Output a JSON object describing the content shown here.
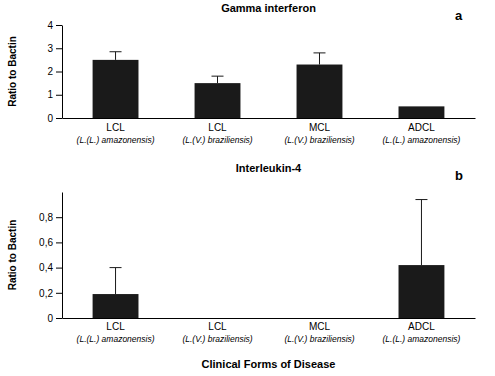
{
  "chart_data": [
    {
      "type": "bar",
      "title": "Gamma interferon",
      "annotation": "a",
      "y_label": "Ratio to Bactin",
      "categories": [
        "LCL\n(L.(L.) amazonensis)",
        "LCL\n(L.(V.) braziliensis)",
        "MCL\n(L.(V.) braziliensis)",
        "ADCL\n(L.(L.) amazonensis)"
      ],
      "values": [
        2.5,
        1.5,
        2.3,
        0.5
      ],
      "errors": [
        0.35,
        0.3,
        0.5,
        null
      ],
      "color": "#1a1a1a",
      "ylim": [
        0,
        4
      ],
      "yticks": [
        0,
        1,
        2,
        3,
        4
      ]
    },
    {
      "type": "bar",
      "title": "Interleukin-4",
      "annotation": "b",
      "y_label": "Ratio to Bactin",
      "x_label": "Clinical Forms of Disease",
      "categories": [
        "LCL\n(L.(L.) amazonensis)",
        "LCL\n(L.(V.) braziliensis)",
        "MCL\n(L.(V.) braziliensis)",
        "ADCL\n(L.(L.) amazonensis)"
      ],
      "values": [
        0.19,
        0,
        0,
        0.42
      ],
      "errors": [
        0.21,
        null,
        null,
        0.52
      ],
      "color": "#1a1a1a",
      "ylim": [
        0,
        1
      ],
      "yticks": [
        0,
        {
          "value": 0.2,
          "label": "0,2"
        },
        {
          "value": 0.4,
          "label": "0,4"
        },
        {
          "value": 0.6,
          "label": "0,6"
        },
        {
          "value": 0.8,
          "label": "0,8"
        }
      ]
    }
  ]
}
